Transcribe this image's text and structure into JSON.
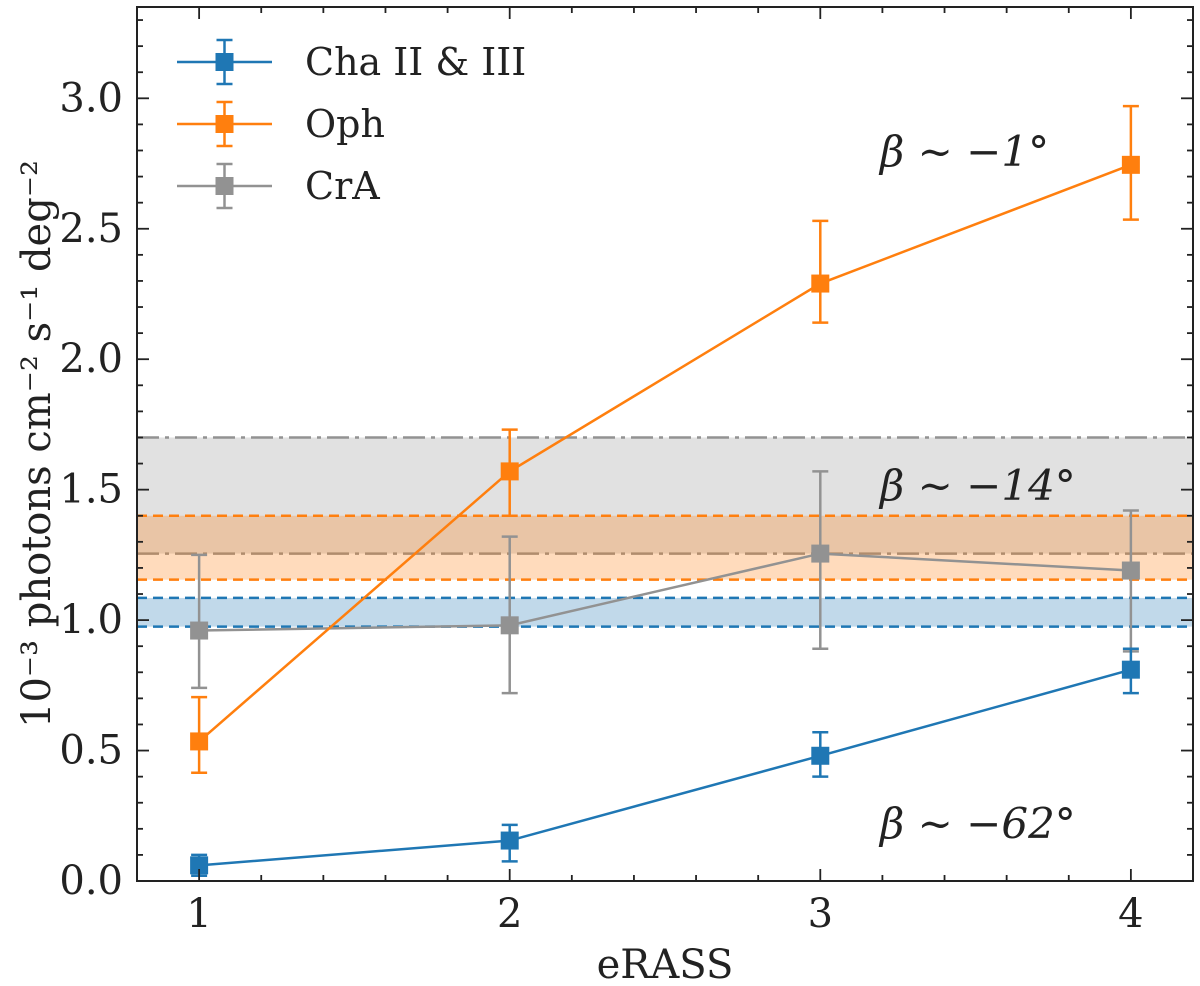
{
  "chart_data": {
    "type": "line",
    "xlabel": "eRASS",
    "ylabel": "10⁻³ photons cm⁻² s⁻¹ deg⁻²",
    "xlim": [
      0.8,
      4.2
    ],
    "ylim": [
      0.0,
      3.35
    ],
    "x": [
      1,
      2,
      3,
      4
    ],
    "x_ticks": [
      "1",
      "2",
      "3",
      "4"
    ],
    "y_ticks": [
      "0.0",
      "0.5",
      "1.0",
      "1.5",
      "2.0",
      "2.5",
      "3.0"
    ],
    "grid": false,
    "legend": "top-left",
    "series": [
      {
        "name": "Cha II & III",
        "color": "#1f77b4",
        "values": [
          0.06,
          0.155,
          0.48,
          0.81
        ],
        "err_low": [
          0.04,
          0.08,
          0.08,
          0.09
        ],
        "err_high": [
          0.04,
          0.06,
          0.09,
          0.08
        ],
        "band": [
          0.975,
          1.085
        ],
        "band_style": "dashed",
        "annotation": "β ∼ −62°"
      },
      {
        "name": "Oph",
        "color": "#ff7f0e",
        "values": [
          0.535,
          1.57,
          2.29,
          2.745
        ],
        "err_low": [
          0.12,
          0.17,
          0.15,
          0.21
        ],
        "err_high": [
          0.17,
          0.16,
          0.24,
          0.225
        ],
        "band": [
          1.155,
          1.4
        ],
        "band_style": "dashed",
        "annotation": "β ∼ −1°"
      },
      {
        "name": "CrA",
        "color": "#929292",
        "values": [
          0.96,
          0.98,
          1.255,
          1.19
        ],
        "err_low": [
          0.22,
          0.26,
          0.365,
          0.31
        ],
        "err_high": [
          0.29,
          0.34,
          0.315,
          0.23
        ],
        "band": [
          1.255,
          1.7
        ],
        "band_style": "dashdot",
        "annotation": "β ∼ −14°"
      }
    ]
  }
}
